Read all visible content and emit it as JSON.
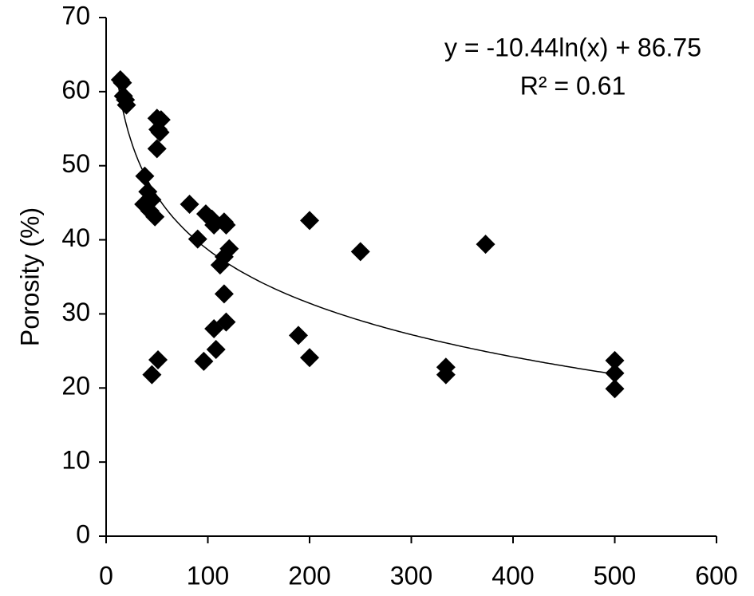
{
  "chart_data": {
    "type": "scatter",
    "y_label": "Porosity (%)",
    "annotations": [
      "y = -10.44ln(x) + 86.75",
      "R² = 0.61"
    ],
    "trendline": {
      "type": "log",
      "coefficients": [
        -10.44,
        86.75
      ],
      "x_range": [
        12,
        500
      ],
      "color": "#000000"
    },
    "series": [
      {
        "color": "#000000",
        "x": [
          14,
          16,
          17,
          19,
          20,
          50,
          54,
          51,
          53,
          50,
          38,
          41,
          37,
          43,
          48,
          45,
          45,
          51,
          82,
          90,
          98,
          104,
          106,
          116,
          118,
          121,
          116,
          112,
          116,
          118,
          106,
          108,
          96,
          189,
          200,
          200,
          250,
          373,
          334,
          334,
          500,
          500,
          500
        ],
        "values": [
          61.6,
          61.2,
          59.4,
          58.9,
          58.2,
          56.4,
          56.2,
          54.9,
          54.5,
          52.3,
          48.6,
          46.5,
          44.8,
          43.9,
          43.1,
          45.4,
          21.8,
          23.8,
          44.8,
          40.1,
          43.5,
          42.8,
          42.0,
          42.4,
          42.0,
          38.8,
          37.7,
          36.6,
          32.7,
          28.9,
          28.0,
          25.2,
          23.6,
          27.1,
          24.1,
          42.6,
          38.4,
          39.4,
          22.8,
          21.8,
          23.7,
          22.0,
          19.9
        ]
      }
    ],
    "xlim": [
      0,
      600
    ],
    "xticks": [
      0,
      100,
      200,
      300,
      400,
      500,
      600
    ],
    "ylim": [
      0,
      70
    ],
    "yticks": [
      0,
      10,
      20,
      30,
      40,
      50,
      60,
      70
    ]
  }
}
